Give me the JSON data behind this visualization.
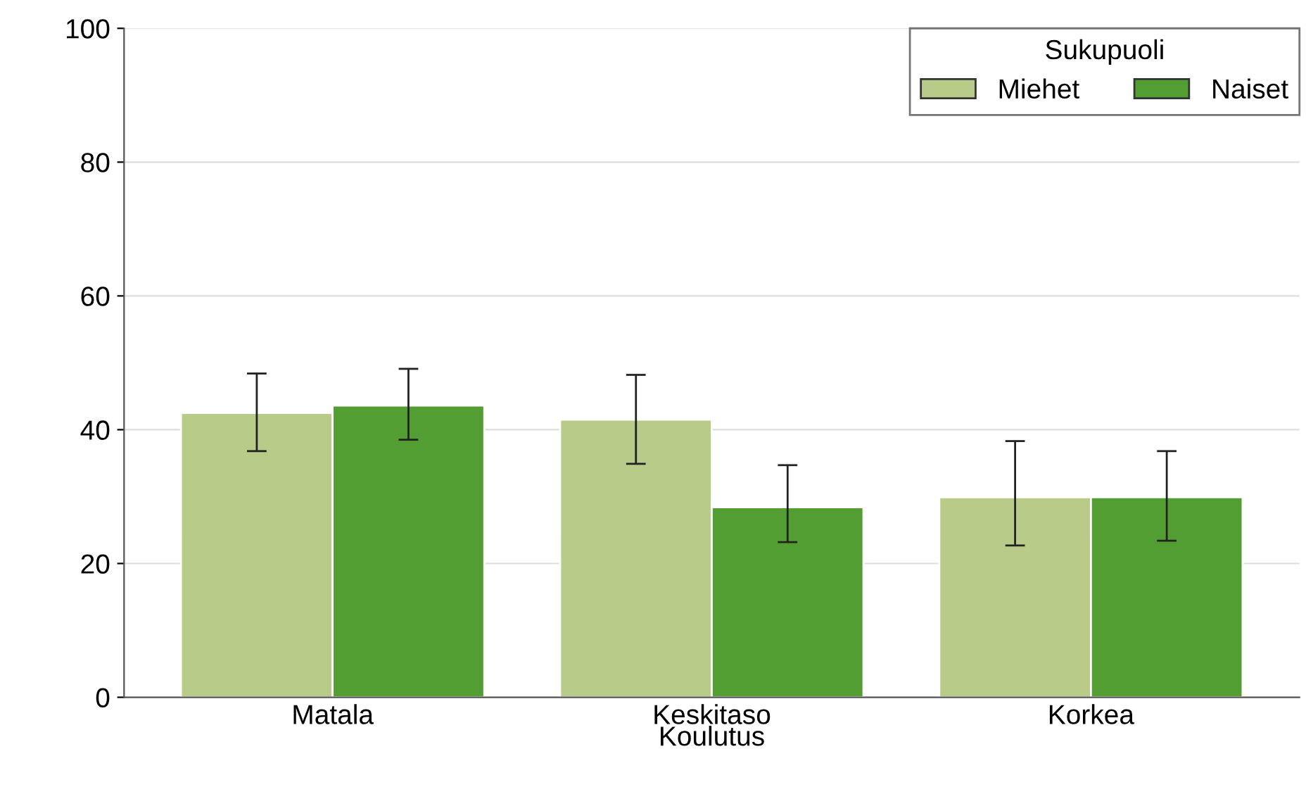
{
  "chart_data": {
    "type": "bar",
    "xlabel": "Koulutus",
    "legend_title": "Sukupuoli",
    "legend": "top right",
    "grid": "y",
    "categories": [
      "Matala",
      "Keskitaso",
      "Korkea"
    ],
    "series": [
      {
        "name": "Miehet",
        "color": "#b8cb89",
        "values": [
          42.5,
          41.5,
          29.9
        ],
        "errors": [
          [
            36.8,
            48.4
          ],
          [
            34.9,
            48.2
          ],
          [
            22.7,
            38.3
          ]
        ]
      },
      {
        "name": "Naiset",
        "color": "#529e32",
        "values": [
          43.6,
          28.4,
          29.9
        ],
        "errors": [
          [
            38.5,
            49.1
          ],
          [
            23.2,
            34.7
          ],
          [
            23.4,
            36.8
          ]
        ]
      }
    ],
    "ylim": [
      0,
      100
    ],
    "yticks": [
      0,
      20,
      40,
      60,
      80,
      100
    ]
  }
}
